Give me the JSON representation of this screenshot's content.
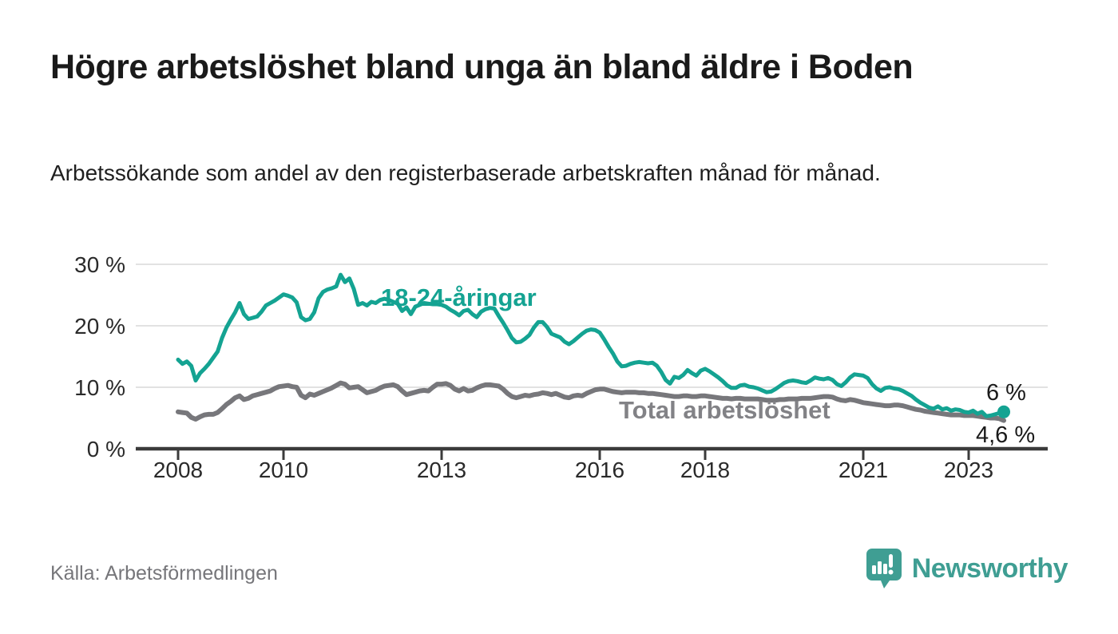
{
  "header": {
    "title": "Högre arbetslöshet bland unga än bland äldre i Boden",
    "subtitle": "Arbetssökande som andel av den registerbaserade arbetskraften månad för månad."
  },
  "footer": {
    "source": "Källa: Arbetsförmedlingen",
    "brand": "Newsworthy"
  },
  "colors": {
    "young_line": "#14a392",
    "total_line": "#77777b",
    "total_label": "#828286",
    "end_dot": "#14a392",
    "gridline": "#d9d9d9",
    "axis": "#3b3b3b",
    "brand_teal": "#3f9e93",
    "text_dark": "#1a1a1a"
  },
  "chart_data": {
    "type": "line",
    "title": "Högre arbetslöshet bland unga än bland äldre i Boden",
    "subtitle": "Arbetssökande som andel av den registerbaserade arbetskraften månad för månad.",
    "x_start_year": 2008.0,
    "x_end_year": 2023.75,
    "points_per_year": 12,
    "x_axis": {
      "tick_years": [
        2008,
        2010,
        2013,
        2016,
        2018,
        2021,
        2023
      ]
    },
    "y_axis": {
      "ticks": [
        0,
        10,
        20,
        30
      ],
      "tick_labels": [
        "0 %",
        "10 %",
        "20 %",
        "30 %"
      ],
      "ylim": [
        0,
        32
      ],
      "grid": true
    },
    "legend_position": "inline-labels",
    "series": [
      {
        "name": "Total arbetslöshet",
        "color": "#77777b",
        "end_label": "4,6 %",
        "end_value": 4.6,
        "values": [
          6.0,
          5.9,
          5.8,
          5.1,
          4.8,
          5.2,
          5.5,
          5.6,
          5.6,
          5.9,
          6.5,
          7.2,
          7.7,
          8.3,
          8.6,
          8.0,
          8.2,
          8.6,
          8.8,
          9.0,
          9.2,
          9.4,
          9.8,
          10.1,
          10.2,
          10.3,
          10.1,
          10.0,
          8.7,
          8.3,
          8.9,
          8.7,
          9.0,
          9.3,
          9.6,
          9.9,
          10.3,
          10.7,
          10.5,
          9.9,
          10.0,
          10.1,
          9.6,
          9.1,
          9.3,
          9.5,
          9.9,
          10.2,
          10.3,
          10.4,
          10.1,
          9.4,
          8.8,
          9.0,
          9.2,
          9.4,
          9.5,
          9.4,
          10.0,
          10.5,
          10.5,
          10.6,
          10.3,
          9.7,
          9.4,
          9.8,
          9.4,
          9.5,
          9.9,
          10.2,
          10.4,
          10.4,
          10.3,
          10.2,
          9.7,
          9.0,
          8.5,
          8.3,
          8.5,
          8.7,
          8.6,
          8.8,
          8.9,
          9.1,
          9.0,
          8.8,
          9.0,
          8.7,
          8.4,
          8.3,
          8.6,
          8.7,
          8.6,
          9.0,
          9.3,
          9.6,
          9.7,
          9.7,
          9.5,
          9.3,
          9.2,
          9.1,
          9.2,
          9.2,
          9.2,
          9.1,
          9.1,
          9.0,
          9.0,
          8.9,
          8.8,
          8.7,
          8.6,
          8.5,
          8.5,
          8.6,
          8.6,
          8.5,
          8.5,
          8.6,
          8.6,
          8.5,
          8.4,
          8.3,
          8.2,
          8.2,
          8.1,
          8.2,
          8.2,
          8.1,
          8.1,
          8.1,
          8.1,
          8.0,
          7.9,
          7.9,
          7.9,
          8.0,
          8.0,
          8.1,
          8.1,
          8.1,
          8.2,
          8.2,
          8.2,
          8.3,
          8.4,
          8.5,
          8.5,
          8.4,
          8.1,
          7.9,
          7.8,
          8.0,
          7.9,
          7.7,
          7.5,
          7.4,
          7.3,
          7.2,
          7.1,
          7.0,
          7.0,
          7.1,
          7.1,
          7.0,
          6.8,
          6.6,
          6.4,
          6.3,
          6.1,
          6.0,
          5.9,
          5.8,
          5.7,
          5.6,
          5.5,
          5.5,
          5.5,
          5.4,
          5.4,
          5.4,
          5.3,
          5.2,
          5.1,
          5.0,
          5.0,
          4.9,
          4.6
        ]
      },
      {
        "name": "18-24-åringar",
        "color": "#14a392",
        "end_label": "6 %",
        "end_value": 6.0,
        "values": [
          14.5,
          13.8,
          14.2,
          13.5,
          11.1,
          12.3,
          13.0,
          13.8,
          14.8,
          15.8,
          18.0,
          19.7,
          21.0,
          22.2,
          23.7,
          21.9,
          21.1,
          21.3,
          21.5,
          22.3,
          23.3,
          23.7,
          24.1,
          24.6,
          25.1,
          24.9,
          24.6,
          23.8,
          21.4,
          20.9,
          21.1,
          22.2,
          24.5,
          25.5,
          25.9,
          26.1,
          26.4,
          28.3,
          27.1,
          27.7,
          26.0,
          23.4,
          23.7,
          23.3,
          23.9,
          23.7,
          24.2,
          24.4,
          24.2,
          23.9,
          23.6,
          22.4,
          23.0,
          21.9,
          23.1,
          23.4,
          23.7,
          23.6,
          23.5,
          23.5,
          23.4,
          23.1,
          22.6,
          22.2,
          21.7,
          22.4,
          22.6,
          21.9,
          21.4,
          22.3,
          22.7,
          22.9,
          22.8,
          21.6,
          20.5,
          19.3,
          18.0,
          17.3,
          17.4,
          17.9,
          18.5,
          19.7,
          20.6,
          20.6,
          19.8,
          18.7,
          18.4,
          18.1,
          17.4,
          17.0,
          17.5,
          18.1,
          18.7,
          19.2,
          19.4,
          19.3,
          18.9,
          17.8,
          16.6,
          15.5,
          14.2,
          13.4,
          13.5,
          13.8,
          14.0,
          14.1,
          14.0,
          13.9,
          14.0,
          13.5,
          12.5,
          11.2,
          10.6,
          11.7,
          11.5,
          12.0,
          12.8,
          12.3,
          11.9,
          12.7,
          13.0,
          12.6,
          12.1,
          11.6,
          11.0,
          10.3,
          9.9,
          9.9,
          10.3,
          10.4,
          10.1,
          10.0,
          9.8,
          9.5,
          9.2,
          9.3,
          9.7,
          10.2,
          10.7,
          11.0,
          11.1,
          11.0,
          10.8,
          10.7,
          11.1,
          11.6,
          11.4,
          11.3,
          11.5,
          11.2,
          10.5,
          10.2,
          10.8,
          11.6,
          12.1,
          12.0,
          11.9,
          11.5,
          10.5,
          9.8,
          9.4,
          9.9,
          10.0,
          9.8,
          9.7,
          9.4,
          9.0,
          8.6,
          8.0,
          7.5,
          7.1,
          6.7,
          6.5,
          6.9,
          6.4,
          6.6,
          6.2,
          6.4,
          6.3,
          6.0,
          5.9,
          6.2,
          5.7,
          6.0,
          5.3,
          5.4,
          5.6,
          5.8,
          6.0
        ]
      }
    ]
  }
}
